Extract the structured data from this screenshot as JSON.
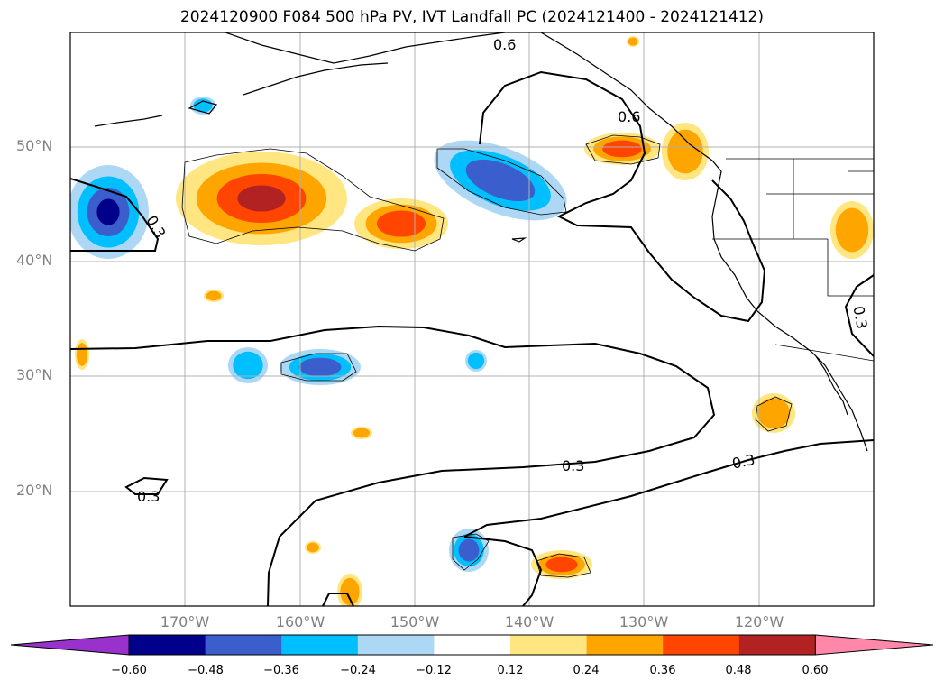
{
  "title": "2024120900 F084 500 hPa PV, IVT Landfall PC (2024121400 - 2024121412)",
  "map": {
    "region": "North-East Pacific and western North America",
    "projection": "Plate Carree",
    "lon_range": [
      -180,
      -110
    ],
    "lat_range": [
      10,
      60
    ],
    "gridlines": true,
    "lat_labels": [
      "50°N",
      "40°N",
      "30°N",
      "20°N"
    ],
    "lon_labels": [
      "170°W",
      "160°W",
      "150°W",
      "140°W",
      "130°W",
      "120°W"
    ],
    "contour_labels": [
      "0.6",
      "0.6",
      "0.3",
      "0.3",
      "0.3",
      "0.3",
      "0.3"
    ]
  },
  "colorbar": {
    "ticks": [
      "−0.60",
      "−0.48",
      "−0.36",
      "−0.24",
      "−0.12",
      "0.12",
      "0.24",
      "0.36",
      "0.48",
      "0.60"
    ],
    "colors": [
      "#9932cc",
      "#00008b",
      "#3a5fcd",
      "#00bfff",
      "#add8f5",
      "#ffffff",
      "#ffe680",
      "#ffa500",
      "#ff4500",
      "#b22222",
      "#ff88aa"
    ],
    "extend": "both"
  }
}
